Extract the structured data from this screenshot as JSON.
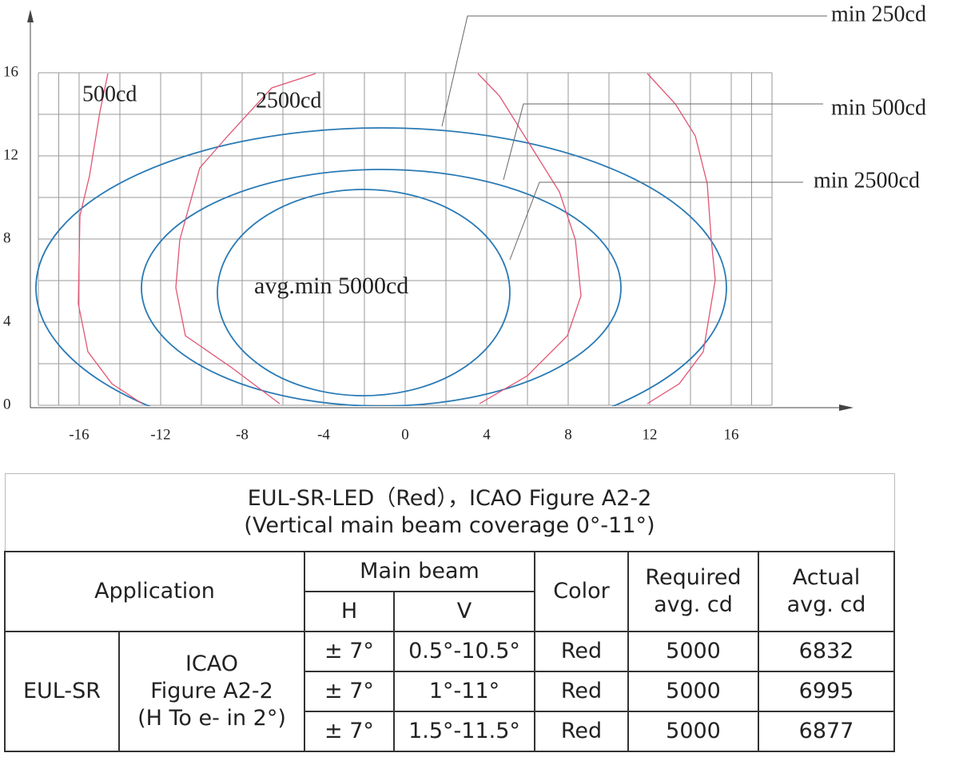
{
  "chart": {
    "xlim": [
      -18,
      18
    ],
    "ylim": [
      0,
      16
    ],
    "xticks": [
      -16,
      -12,
      -8,
      -4,
      0,
      4,
      8,
      12,
      16
    ],
    "yticks": [
      0,
      4,
      8,
      12,
      16
    ],
    "grid": true,
    "annotations": {
      "curve_500": "500cd",
      "curve_2500": "2500cd",
      "min_250": "min 250cd",
      "min_500": "min 500cd",
      "min_2500": "min 2500cd",
      "center": "avg.min 5000cd"
    }
  },
  "table": {
    "title": [
      "EUL-SR-LED（Red），ICAO Figure A2-2",
      "(Vertical main beam coverage 0°-11°)"
    ],
    "header": {
      "application": "Application",
      "main_beam": "Main beam",
      "h": "H",
      "v": "V",
      "color": "Color",
      "required": [
        "Required",
        "avg. cd"
      ],
      "actual": [
        "Actual",
        "avg. cd"
      ]
    },
    "group": "EUL-SR",
    "subgroup": [
      "ICAO",
      "Figure A2-2",
      "(H To e- in 2°)"
    ],
    "rows": [
      [
        "± 7°",
        "0.5°-10.5°",
        "Red",
        5000,
        6832
      ],
      [
        "± 7°",
        "1°-11°",
        "Red",
        5000,
        6995
      ],
      [
        "± 7°",
        "1.5°-11.5°",
        "Red",
        5000,
        6877
      ]
    ]
  }
}
